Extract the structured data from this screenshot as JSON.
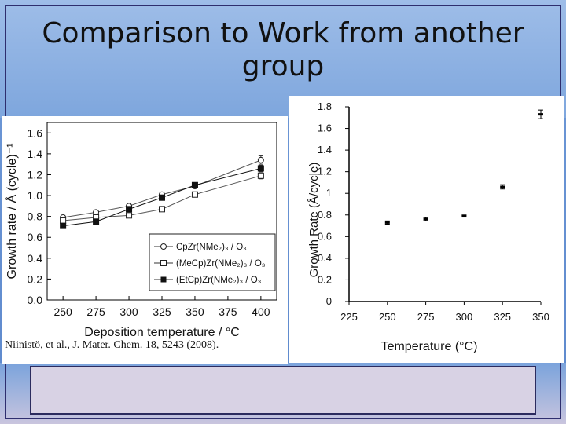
{
  "slide": {
    "title": "Comparison to Work from another group",
    "citation": "Niinistö, et al., J. Mater. Chem. 18, 5243 (2008)."
  },
  "chart_data": [
    {
      "type": "line",
      "x": [
        250,
        275,
        300,
        325,
        350,
        400
      ],
      "xlabel": "Deposition temperature / °C",
      "ylabel": "Growth rate / Å (cycle)⁻¹",
      "xticks": [
        "250",
        "275",
        "300",
        "325",
        "350",
        "375",
        "400"
      ],
      "yticks": [
        "0.0",
        "0.2",
        "0.4",
        "0.6",
        "0.8",
        "1.0",
        "1.2",
        "1.4",
        "1.6"
      ],
      "xlim": [
        238,
        412
      ],
      "ylim": [
        0,
        1.7
      ],
      "legend_position": "bottom-right",
      "series": [
        {
          "name": "CpZr(NMe₂)₃ / O₃",
          "marker": "circle-open",
          "values": [
            0.79,
            0.84,
            0.9,
            1.01,
            1.09,
            1.34
          ],
          "errors": [
            0.02,
            0.02,
            0.02,
            0.02,
            0.02,
            0.04
          ]
        },
        {
          "name": "(MeCp)Zr(NMe₂)₃ / O₃",
          "marker": "square-open",
          "values": [
            0.76,
            0.79,
            0.81,
            0.87,
            1.01,
            1.19
          ],
          "errors": [
            0.02,
            0.02,
            0.02,
            0.02,
            0.02,
            0.03
          ]
        },
        {
          "name": "(EtCp)Zr(NMe₂)₃ / O₃",
          "marker": "square-filled",
          "values": [
            0.71,
            0.75,
            0.87,
            0.98,
            1.1,
            1.26
          ],
          "errors": [
            0.02,
            0.02,
            0.02,
            0.02,
            0.02,
            0.03
          ]
        }
      ]
    },
    {
      "type": "scatter",
      "xlabel": "Temperature (°C)",
      "ylabel": "Growth Rate (Å/cycle)",
      "xticks": [
        "225",
        "250",
        "275",
        "300",
        "325",
        "350"
      ],
      "yticks": [
        "0",
        "0.2",
        "0.4",
        "0.6",
        "0.8",
        "1",
        "1.2",
        "1.4",
        "1.6",
        "1.8"
      ],
      "xlim": [
        225,
        350
      ],
      "ylim": [
        0,
        1.8
      ],
      "points": [
        {
          "x": 250,
          "y": 0.73,
          "err": 0.015
        },
        {
          "x": 275,
          "y": 0.76,
          "err": 0.015
        },
        {
          "x": 300,
          "y": 0.79,
          "err": 0.01
        },
        {
          "x": 325,
          "y": 1.06,
          "err": 0.02
        },
        {
          "x": 350,
          "y": 1.73,
          "err": 0.04
        }
      ]
    }
  ]
}
